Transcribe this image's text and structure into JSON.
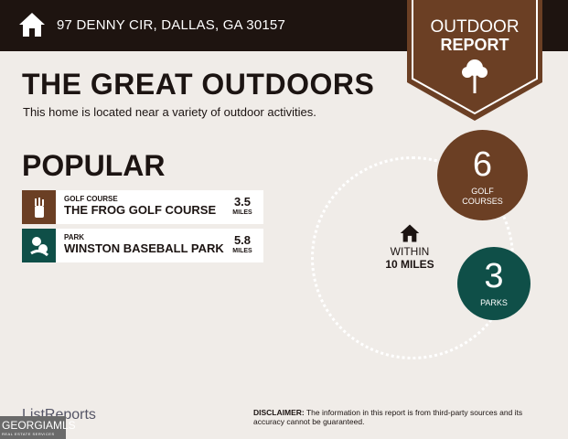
{
  "header": {
    "address": "97 DENNY CIR, DALLAS, GA 30157",
    "icon": "home-icon"
  },
  "badge": {
    "line1": "OUTDOOR",
    "line2": "REPORT",
    "icon": "tree-icon",
    "color": "#6b3f24"
  },
  "title": "THE GREAT OUTDOORS",
  "subtitle": "This home is located near a variety of outdoor activities.",
  "popular": {
    "heading": "POPULAR",
    "items": [
      {
        "category": "GOLF COURSE",
        "name": "THE FROG GOLF COURSE",
        "distance": "3.5",
        "unit": "MILES",
        "icon": "golf-bag-icon",
        "color": "#6b3f24"
      },
      {
        "category": "PARK",
        "name": "WINSTON BASEBALL PARK",
        "distance": "5.8",
        "unit": "MILES",
        "icon": "park-icon",
        "color": "#0f4f48"
      }
    ]
  },
  "radius": {
    "line1": "WITHIN",
    "line2": "10 MILES",
    "icon": "home-icon"
  },
  "counts": [
    {
      "value": "6",
      "label": "GOLF COURSES",
      "color": "#6b3f24"
    },
    {
      "value": "3",
      "label": "PARKS",
      "color": "#0f4f48"
    }
  ],
  "footer": {
    "brand": "ListReports",
    "mls": "GEORGIAMLS",
    "mls_sub": "REAL ESTATE SERVICES",
    "disclaimer_label": "DISCLAIMER:",
    "disclaimer": " The information in this report is from third-party sources and its accuracy cannot be guaranteed."
  }
}
